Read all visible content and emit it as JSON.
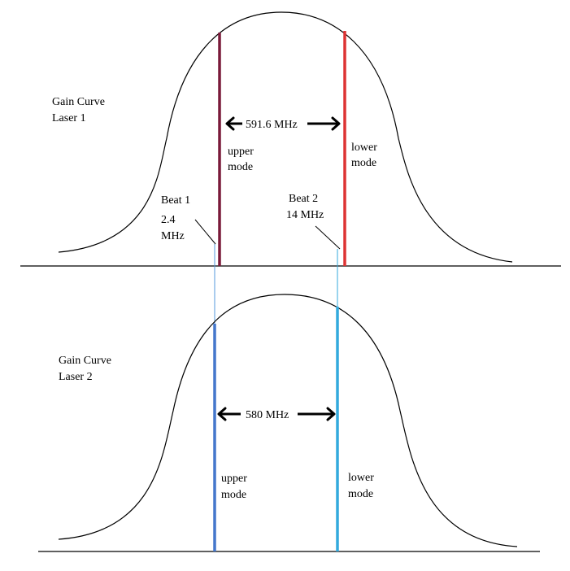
{
  "laser1": {
    "title_line1": "Gain Curve",
    "title_line2": "Laser 1",
    "spacing_label": "591.6 MHz",
    "upper_mode": {
      "line1": "upper",
      "line2": "mode",
      "color": "#7a1a3a"
    },
    "lower_mode": {
      "line1": "lower",
      "line2": "mode",
      "color": "#dd3333"
    }
  },
  "laser2": {
    "title_line1": "Gain Curve",
    "title_line2": "Laser 2",
    "spacing_label": "580 MHz",
    "upper_mode": {
      "line1": "upper",
      "line2": "mode",
      "color": "#4477cc"
    },
    "lower_mode": {
      "line1": "lower",
      "line2": "mode",
      "color": "#33aadd"
    }
  },
  "beat1": {
    "line1": "Beat 1",
    "line2": "2.4",
    "line3": "MHz",
    "color": "#5599dd"
  },
  "beat2": {
    "line1": "Beat 2",
    "line2": "14 MHz",
    "color": "#33aadd"
  }
}
